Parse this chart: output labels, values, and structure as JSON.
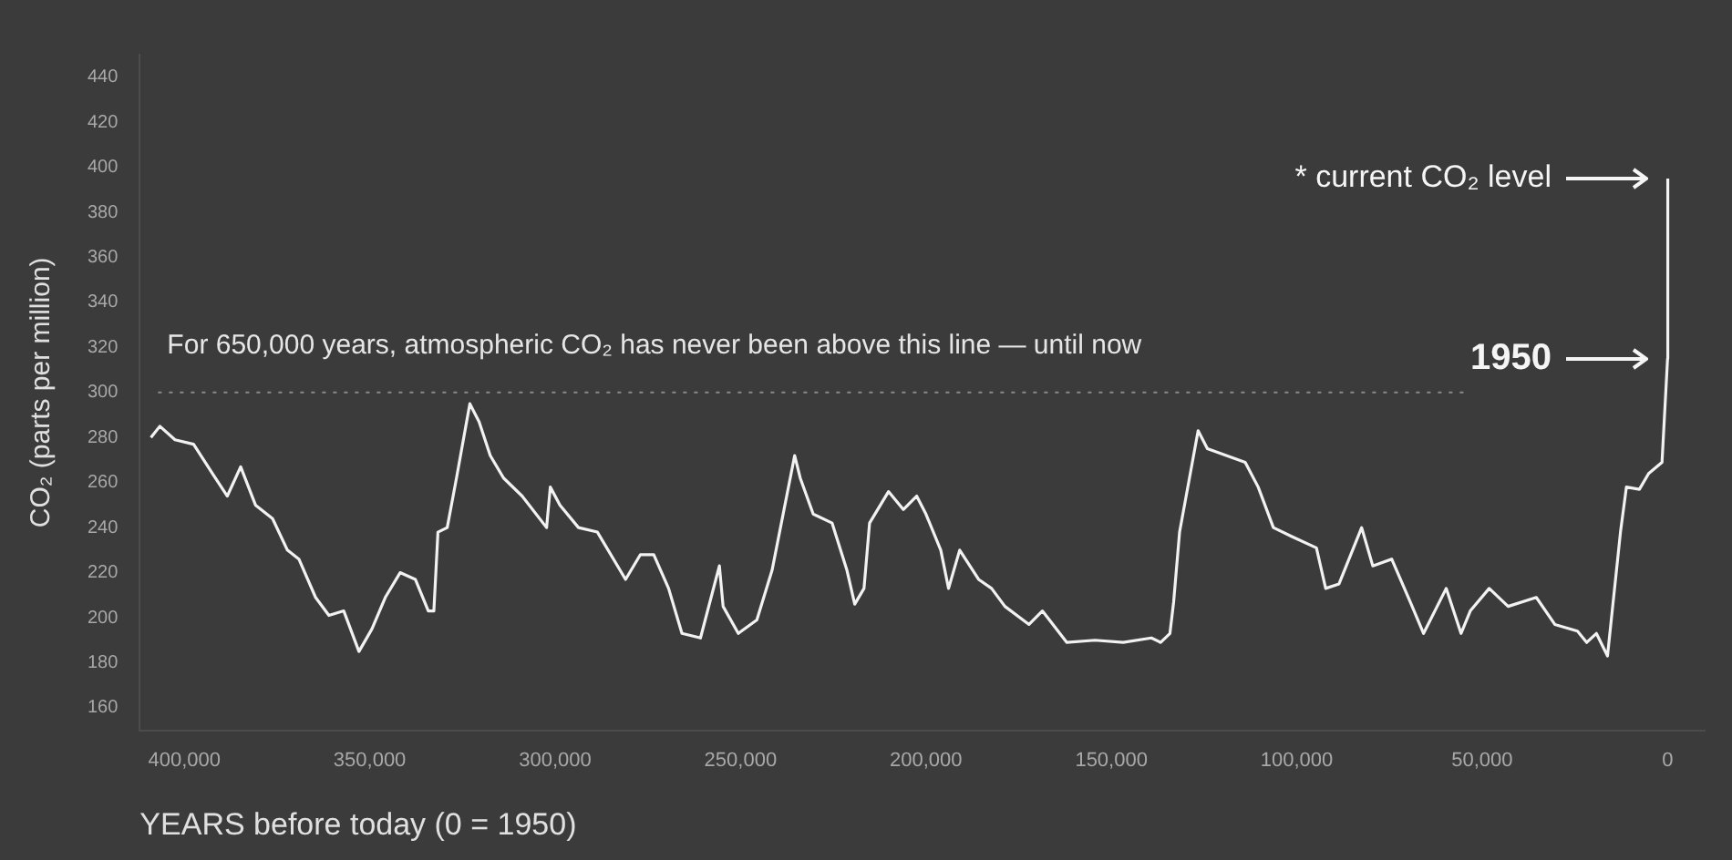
{
  "chart_data": {
    "type": "line",
    "ylabel": "CO₂ (parts per million)",
    "xlabel": "YEARS before today (0 = 1950)",
    "x": [
      409000,
      406600,
      402500,
      397500,
      392400,
      388400,
      384800,
      380800,
      376200,
      372200,
      369100,
      364600,
      361000,
      357000,
      352900,
      349400,
      345800,
      341800,
      337700,
      334200,
      332700,
      331600,
      329100,
      326600,
      323000,
      320500,
      317500,
      313900,
      308900,
      302300,
      301300,
      298700,
      293700,
      288600,
      281000,
      277000,
      273400,
      269400,
      265800,
      260800,
      255700,
      254700,
      250600,
      245600,
      241500,
      235400,
      233900,
      230400,
      225300,
      221300,
      219200,
      216700,
      215200,
      210100,
      206100,
      202500,
      200000,
      196000,
      193900,
      190900,
      185800,
      182300,
      178700,
      172200,
      168600,
      162000,
      154400,
      146800,
      139200,
      136700,
      134200,
      133200,
      131600,
      126600,
      124100,
      119000,
      113900,
      110400,
      106300,
      101300,
      94700,
      92200,
      88600,
      82500,
      79500,
      74400,
      69400,
      65800,
      59700,
      55700,
      53200,
      48100,
      43000,
      35400,
      30400,
      24300,
      21800,
      19200,
      16200,
      12700,
      11100,
      7600,
      5100,
      1500,
      0,
      -60
    ],
    "values": [
      280,
      285,
      279,
      277,
      264,
      254,
      267,
      250,
      244,
      230,
      226,
      209,
      201,
      203,
      185,
      195,
      209,
      220,
      217,
      203,
      203,
      238,
      240,
      262,
      295,
      287,
      272,
      262,
      254,
      240,
      258,
      250,
      240,
      238,
      217,
      228,
      228,
      213,
      193,
      191,
      223,
      205,
      193,
      199,
      221,
      272,
      262,
      246,
      242,
      221,
      206,
      213,
      242,
      256,
      248,
      254,
      246,
      230,
      213,
      230,
      217,
      213,
      205,
      197,
      203,
      189,
      190,
      189,
      191,
      189,
      193,
      207,
      238,
      283,
      275,
      272,
      269,
      258,
      240,
      236,
      231,
      213,
      215,
      240,
      223,
      226,
      207,
      193,
      213,
      193,
      203,
      213,
      205,
      209,
      197,
      194,
      189,
      193,
      183,
      238,
      258,
      257,
      264,
      269,
      315,
      395
    ],
    "color": "#f2f2f2",
    "marker": "none",
    "line_style": "solid",
    "xlim": [
      412000,
      -10000
    ],
    "xticks": [
      {
        "value": 400000,
        "label": "400,000"
      },
      {
        "value": 350000,
        "label": "350,000"
      },
      {
        "value": 300000,
        "label": "300,000"
      },
      {
        "value": 250000,
        "label": "250,000"
      },
      {
        "value": 200000,
        "label": "200,000"
      },
      {
        "value": 150000,
        "label": "150,000"
      },
      {
        "value": 100000,
        "label": "100,000"
      },
      {
        "value": 50000,
        "label": "50,000"
      },
      0
    ],
    "ylim": [
      150,
      450
    ],
    "yticks": [
      160,
      180,
      200,
      220,
      240,
      260,
      280,
      300,
      320,
      340,
      360,
      380,
      400,
      420,
      440
    ],
    "grid": false,
    "legend": false,
    "ref_lines": [
      {
        "axis": "y",
        "value": 300,
        "label": "For 650,000 years, atmospheric CO₂ has never been above this line — until now",
        "color": "#8a8a8a",
        "line_style": "dotted"
      }
    ],
    "annotations": [
      "* current CO₂ level",
      "1950"
    ]
  }
}
